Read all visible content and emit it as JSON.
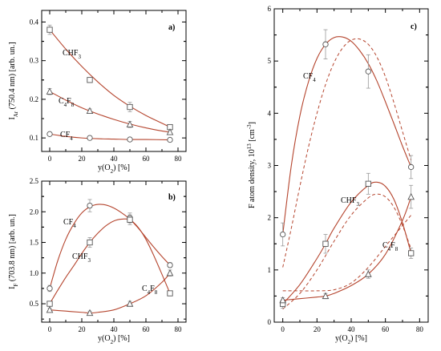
{
  "colors": {
    "curve": "#b5452e",
    "marker": "#555555",
    "axis": "#000000",
    "errorbar": "#999999"
  },
  "chart_data": [
    {
      "type": "line",
      "panel": "a)",
      "xlabel": "y(O2) [%]",
      "ylabel": "IAr (750.4 nm) [arb. un.]",
      "xlim": [
        -5,
        85
      ],
      "ylim": [
        0.065,
        0.43
      ],
      "xticks": [
        0,
        20,
        40,
        60,
        80
      ],
      "yticks": [
        0.1,
        0.2,
        0.3,
        0.4
      ],
      "ytick_labels": [
        "0.1",
        "0.2",
        "0.3",
        "0.4"
      ],
      "series": [
        {
          "name": "CHF3",
          "marker": "square",
          "x": [
            0,
            25,
            50,
            75
          ],
          "values": [
            0.38,
            0.25,
            0.18,
            0.128
          ],
          "err": [
            0.012,
            0.006,
            0.012,
            0.005
          ],
          "fit": [
            [
              0,
              0.38
            ],
            [
              10,
              0.33
            ],
            [
              20,
              0.285
            ],
            [
              30,
              0.245
            ],
            [
              40,
              0.21
            ],
            [
              50,
              0.182
            ],
            [
              60,
              0.158
            ],
            [
              70,
              0.138
            ],
            [
              75,
              0.128
            ]
          ]
        },
        {
          "name": "C4F8",
          "marker": "triangle",
          "x": [
            0,
            25,
            50,
            75
          ],
          "values": [
            0.22,
            0.17,
            0.135,
            0.115
          ],
          "err": [
            0.008,
            0.005,
            0.008,
            0.005
          ],
          "fit": [
            [
              0,
              0.22
            ],
            [
              10,
              0.198
            ],
            [
              20,
              0.178
            ],
            [
              30,
              0.162
            ],
            [
              40,
              0.148
            ],
            [
              50,
              0.136
            ],
            [
              60,
              0.126
            ],
            [
              70,
              0.118
            ],
            [
              75,
              0.115
            ]
          ]
        },
        {
          "name": "CF4",
          "marker": "circle",
          "x": [
            0,
            25,
            50,
            75
          ],
          "values": [
            0.11,
            0.1,
            0.096,
            0.095
          ],
          "err": [
            0.004,
            0.003,
            0.003,
            0.003
          ],
          "fit": [
            [
              0,
              0.11
            ],
            [
              10,
              0.104
            ],
            [
              20,
              0.1
            ],
            [
              30,
              0.098
            ],
            [
              40,
              0.097
            ],
            [
              50,
              0.096
            ],
            [
              60,
              0.096
            ],
            [
              75,
              0.095
            ]
          ]
        }
      ]
    },
    {
      "type": "line",
      "panel": "b)",
      "xlabel": "y(O2) [%]",
      "ylabel": "IF (703.8 nm) [arb. un.]",
      "xlim": [
        -5,
        85
      ],
      "ylim": [
        0.2,
        2.5
      ],
      "xticks": [
        0,
        20,
        40,
        60,
        80
      ],
      "yticks": [
        0.5,
        1.0,
        1.5,
        2.0,
        2.5
      ],
      "ytick_labels": [
        "0.5",
        "1.0",
        "1.5",
        "2.0",
        "2.5"
      ],
      "series": [
        {
          "name": "CF4",
          "marker": "circle",
          "x": [
            0,
            25,
            50,
            75
          ],
          "values": [
            0.75,
            2.1,
            1.9,
            1.13
          ],
          "err": [
            0.05,
            0.1,
            0.08,
            0.04
          ],
          "fit": [
            [
              0,
              0.75
            ],
            [
              5,
              1.2
            ],
            [
              10,
              1.55
            ],
            [
              15,
              1.8
            ],
            [
              20,
              1.98
            ],
            [
              25,
              2.08
            ],
            [
              30,
              2.12
            ],
            [
              35,
              2.11
            ],
            [
              40,
              2.06
            ],
            [
              45,
              1.98
            ],
            [
              50,
              1.88
            ],
            [
              55,
              1.74
            ],
            [
              60,
              1.58
            ],
            [
              65,
              1.42
            ],
            [
              70,
              1.27
            ],
            [
              75,
              1.13
            ]
          ]
        },
        {
          "name": "CHF3",
          "marker": "square",
          "x": [
            0,
            25,
            50,
            75
          ],
          "values": [
            0.5,
            1.5,
            1.87,
            0.67
          ],
          "err": [
            0.04,
            0.08,
            0.08,
            0.04
          ],
          "fit": [
            [
              0,
              0.5
            ],
            [
              5,
              0.72
            ],
            [
              10,
              0.93
            ],
            [
              15,
              1.12
            ],
            [
              20,
              1.32
            ],
            [
              25,
              1.5
            ],
            [
              30,
              1.65
            ],
            [
              35,
              1.77
            ],
            [
              40,
              1.85
            ],
            [
              45,
              1.88
            ],
            [
              50,
              1.87
            ],
            [
              55,
              1.75
            ],
            [
              60,
              1.55
            ],
            [
              65,
              1.28
            ],
            [
              70,
              0.98
            ],
            [
              75,
              0.67
            ]
          ]
        },
        {
          "name": "C4F8",
          "marker": "triangle",
          "x": [
            0,
            25,
            50,
            75
          ],
          "values": [
            0.4,
            0.35,
            0.5,
            1.0
          ],
          "err": [
            0.03,
            0.03,
            0.04,
            0.05
          ],
          "fit": [
            [
              0,
              0.4
            ],
            [
              10,
              0.38
            ],
            [
              20,
              0.36
            ],
            [
              25,
              0.35
            ],
            [
              30,
              0.36
            ],
            [
              40,
              0.4
            ],
            [
              50,
              0.5
            ],
            [
              60,
              0.63
            ],
            [
              70,
              0.85
            ],
            [
              75,
              1.0
            ]
          ]
        }
      ]
    },
    {
      "type": "line",
      "panel": "c)",
      "xlabel": "y(O2) [%]",
      "ylabel": "F atom density, 10^13 [cm^-3]",
      "xlim": [
        -5,
        85
      ],
      "ylim": [
        0,
        6
      ],
      "xticks": [
        0,
        20,
        40,
        60,
        80
      ],
      "yticks": [
        0,
        1,
        2,
        3,
        4,
        5,
        6
      ],
      "ytick_labels": [
        "0",
        "1",
        "2",
        "3",
        "4",
        "5",
        "6"
      ],
      "series": [
        {
          "name": "CF4",
          "marker": "circle",
          "x": [
            0,
            25,
            50,
            75
          ],
          "values": [
            1.68,
            5.32,
            4.8,
            2.97
          ],
          "err": [
            0.22,
            0.28,
            0.32,
            0.22
          ],
          "fit": [
            [
              0,
              1.68
            ],
            [
              5,
              3.0
            ],
            [
              10,
              3.95
            ],
            [
              15,
              4.6
            ],
            [
              20,
              5.05
            ],
            [
              25,
              5.32
            ],
            [
              30,
              5.45
            ],
            [
              35,
              5.46
            ],
            [
              40,
              5.38
            ],
            [
              45,
              5.2
            ],
            [
              50,
              4.95
            ],
            [
              55,
              4.62
            ],
            [
              60,
              4.22
            ],
            [
              65,
              3.8
            ],
            [
              70,
              3.37
            ],
            [
              75,
              2.97
            ]
          ],
          "dashed": [
            [
              0,
              1.05
            ],
            [
              5,
              1.8
            ],
            [
              10,
              2.6
            ],
            [
              15,
              3.35
            ],
            [
              20,
              4.0
            ],
            [
              25,
              4.55
            ],
            [
              30,
              4.97
            ],
            [
              35,
              5.25
            ],
            [
              40,
              5.4
            ],
            [
              45,
              5.42
            ],
            [
              50,
              5.32
            ],
            [
              55,
              5.08
            ],
            [
              60,
              4.7
            ],
            [
              65,
              4.2
            ],
            [
              70,
              3.65
            ],
            [
              75,
              3.1
            ]
          ]
        },
        {
          "name": "CHF3",
          "marker": "square",
          "x": [
            0,
            25,
            50,
            75
          ],
          "values": [
            0.35,
            1.5,
            2.65,
            1.32
          ],
          "err": [
            0.08,
            0.18,
            0.2,
            0.1
          ],
          "fit": [
            [
              0,
              0.35
            ],
            [
              10,
              0.72
            ],
            [
              20,
              1.22
            ],
            [
              25,
              1.5
            ],
            [
              30,
              1.8
            ],
            [
              40,
              2.3
            ],
            [
              50,
              2.62
            ],
            [
              55,
              2.68
            ],
            [
              60,
              2.6
            ],
            [
              65,
              2.35
            ],
            [
              70,
              1.9
            ],
            [
              75,
              1.32
            ]
          ],
          "dashed": [
            [
              0,
              0.25
            ],
            [
              10,
              0.55
            ],
            [
              20,
              1.0
            ],
            [
              30,
              1.55
            ],
            [
              40,
              2.05
            ],
            [
              50,
              2.38
            ],
            [
              55,
              2.45
            ],
            [
              60,
              2.4
            ],
            [
              65,
              2.2
            ],
            [
              70,
              1.85
            ],
            [
              75,
              1.4
            ]
          ]
        },
        {
          "name": "C4F8",
          "marker": "triangle",
          "x": [
            0,
            25,
            50,
            75
          ],
          "values": [
            0.42,
            0.5,
            0.92,
            2.4
          ],
          "err": [
            0.05,
            0.05,
            0.08,
            0.22
          ],
          "fit": [
            [
              0,
              0.42
            ],
            [
              10,
              0.45
            ],
            [
              20,
              0.48
            ],
            [
              25,
              0.5
            ],
            [
              30,
              0.55
            ],
            [
              40,
              0.7
            ],
            [
              50,
              0.92
            ],
            [
              60,
              1.3
            ],
            [
              70,
              1.95
            ],
            [
              75,
              2.4
            ]
          ],
          "dashed": [
            [
              0,
              0.6
            ],
            [
              10,
              0.6
            ],
            [
              20,
              0.6
            ],
            [
              30,
              0.62
            ],
            [
              40,
              0.75
            ],
            [
              50,
              1.05
            ],
            [
              60,
              1.45
            ],
            [
              70,
              1.85
            ],
            [
              75,
              2.05
            ]
          ]
        }
      ]
    }
  ],
  "panels": {
    "a": {
      "tag": "a)",
      "ylabel_main": "I",
      "ylabel_sub": "Ar",
      "ylabel_rest": " (750.4 nm) [arb. un.]",
      "xlabel_main": "y(O",
      "xlabel_sub": "2",
      "xlabel_rest": ") [%]",
      "labels": [
        {
          "main": "CHF",
          "sub": "3"
        },
        {
          "main": "C",
          "sub": "4",
          "main2": "F",
          "sub2": "8"
        },
        {
          "main": "CF",
          "sub": "4"
        }
      ]
    },
    "b": {
      "tag": "b)",
      "ylabel_main": "I",
      "ylabel_sub": "F",
      "ylabel_rest": " (703.8 nm) [arb. un.]",
      "xlabel_main": "y(O",
      "xlabel_sub": "2",
      "xlabel_rest": ") [%]",
      "labels": [
        {
          "main": "CF",
          "sub": "4"
        },
        {
          "main": "CHF",
          "sub": "3"
        },
        {
          "main": "C",
          "sub": "4",
          "main2": "F",
          "sub2": "8"
        }
      ]
    },
    "c": {
      "tag": "c)",
      "ylabel_main": "F atom density, 10",
      "ylabel_sup": "13",
      "ylabel_rest": " [cm",
      "ylabel_sup2": "-3",
      "ylabel_end": "]",
      "xlabel_main": "y(O",
      "xlabel_sub": "2",
      "xlabel_rest": ") [%]",
      "labels": [
        {
          "main": "CF",
          "sub": "4"
        },
        {
          "main": "CHF",
          "sub": "3"
        },
        {
          "main": "C",
          "sub": "4",
          "main2": "F",
          "sub2": "8"
        }
      ]
    }
  }
}
